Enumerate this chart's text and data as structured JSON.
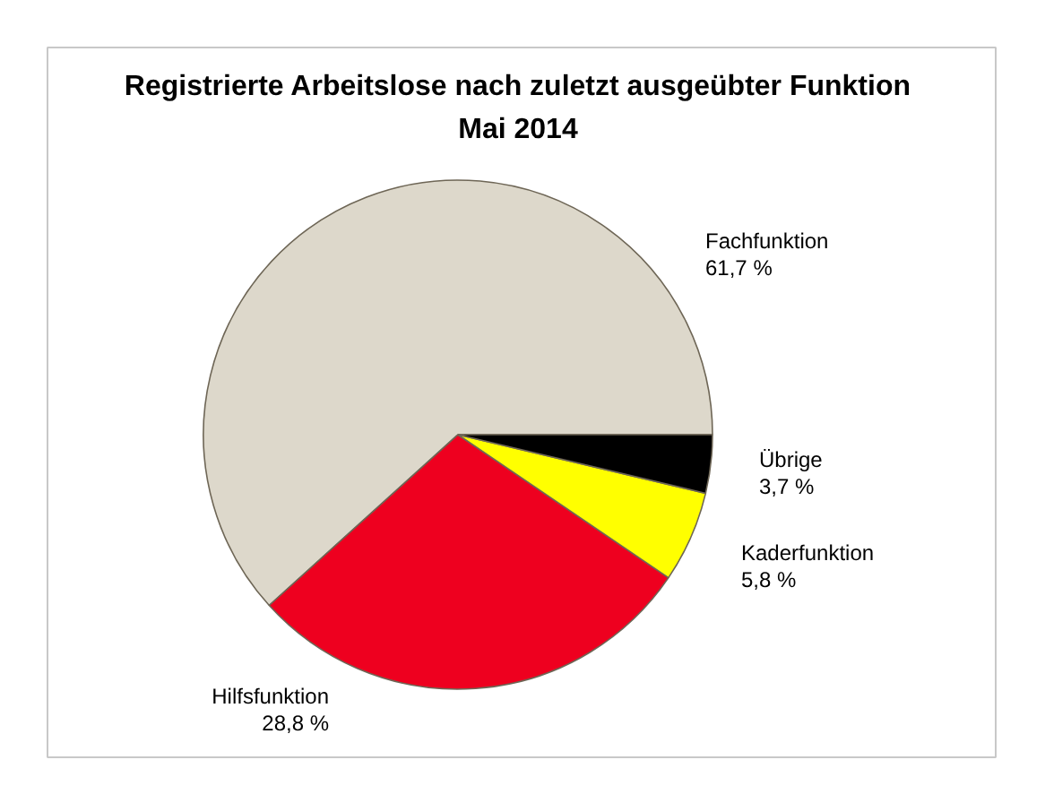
{
  "chart_data": {
    "type": "pie",
    "title": "Registrierte Arbeitslose nach zuletzt ausgeübter Funktion",
    "subtitle": "Mai 2014",
    "categories": [
      "Fachfunktion",
      "Hilfsfunktion",
      "Kaderfunktion",
      "Übrige"
    ],
    "values": [
      61.7,
      28.8,
      5.8,
      3.7
    ],
    "colors": [
      "#ddd8cb",
      "#ee001f",
      "#ffff00",
      "#000000"
    ],
    "value_labels": [
      "61,7 %",
      "28,8 %",
      "5,8 %",
      "3,7 %"
    ]
  }
}
